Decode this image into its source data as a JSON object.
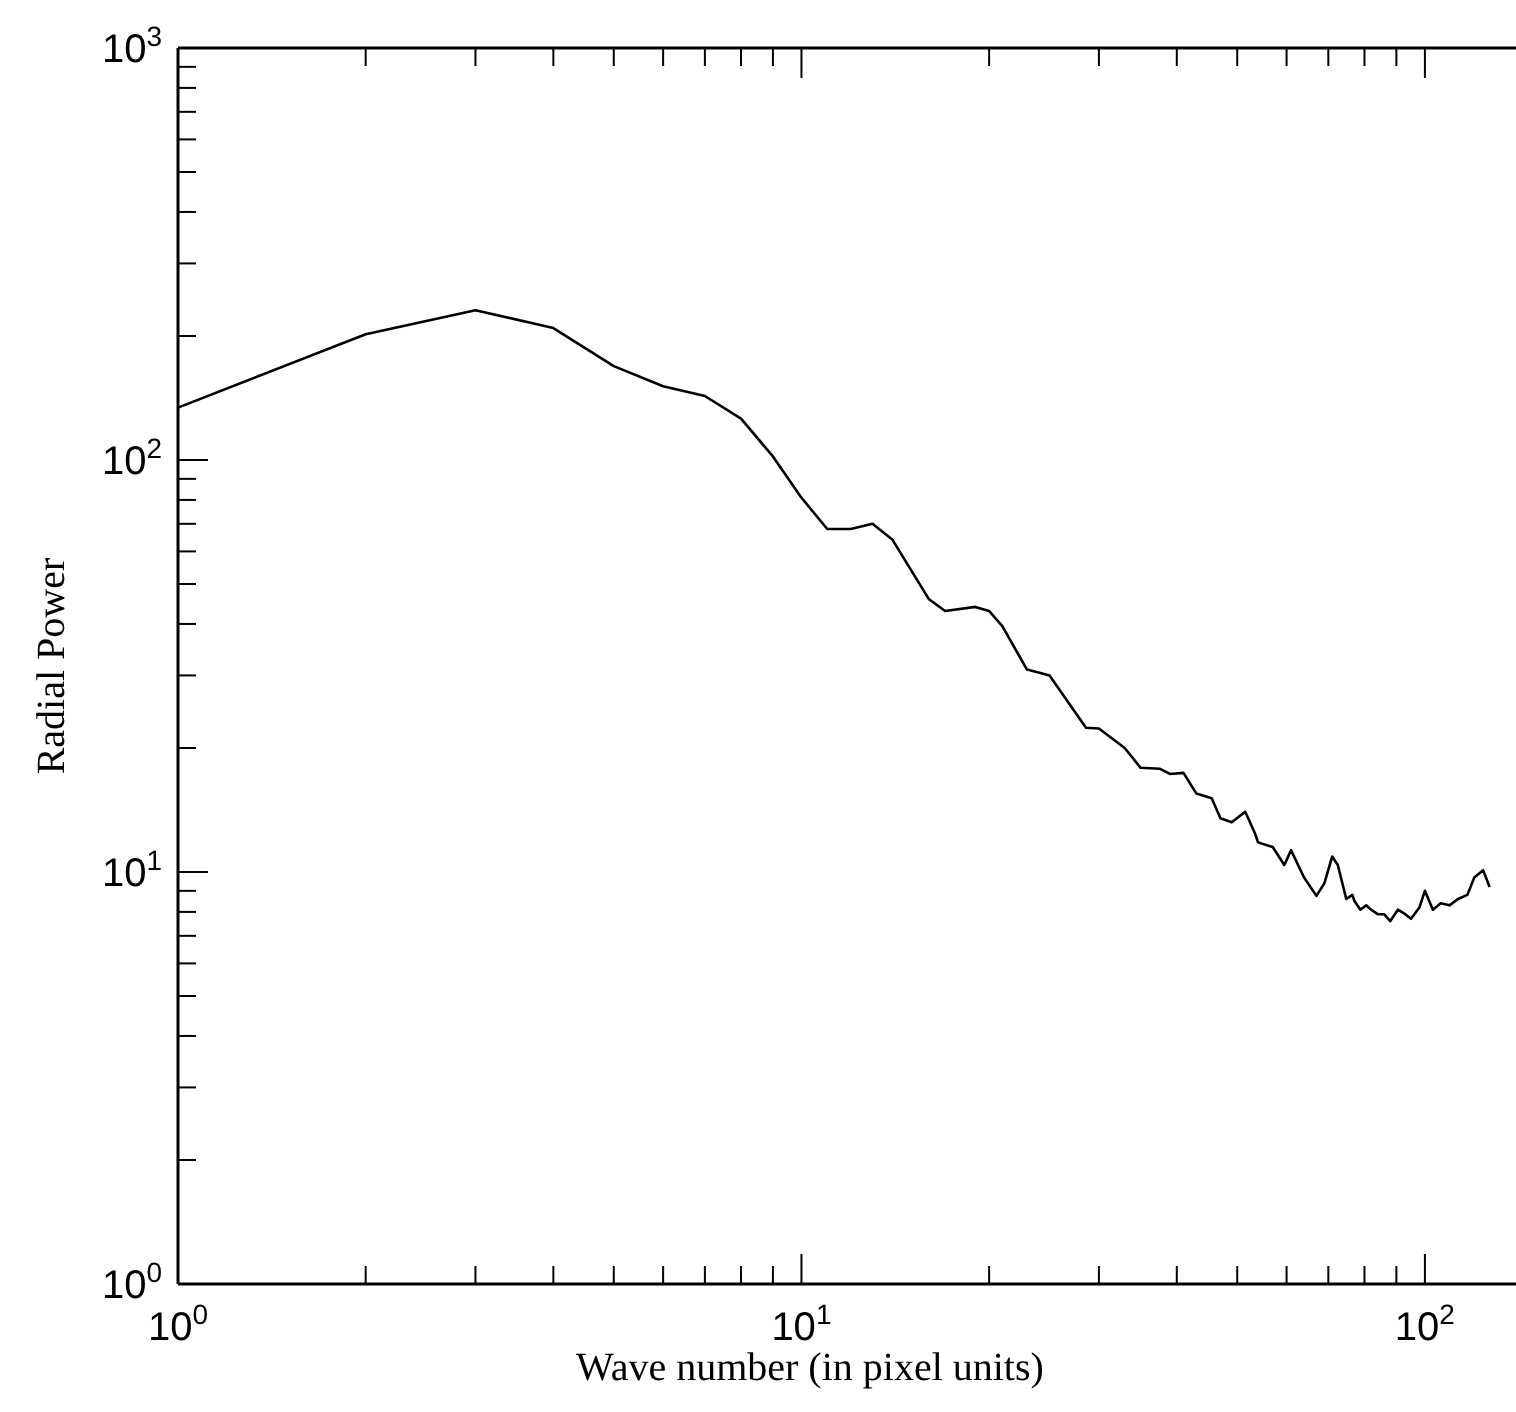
{
  "chart_data": {
    "type": "line",
    "xlabel": "Wave number (in pixel units)",
    "ylabel": "Radial Power",
    "log": "xy",
    "grid": false,
    "marker": "none",
    "line_style": "solid",
    "xlim": [
      1,
      140
    ],
    "ylim": [
      1,
      1000
    ],
    "xticks": [
      {
        "value": 1,
        "label": "10$^{0}$"
      },
      {
        "value": 2,
        "label": null
      },
      {
        "value": 3,
        "label": null
      },
      {
        "value": 4,
        "label": null
      },
      {
        "value": 5,
        "label": null
      },
      {
        "value": 6,
        "label": null
      },
      {
        "value": 7,
        "label": null
      },
      {
        "value": 8,
        "label": null
      },
      {
        "value": 9,
        "label": null
      },
      {
        "value": 10,
        "label": "10$^{1}$"
      },
      {
        "value": 20,
        "label": null
      },
      {
        "value": 30,
        "label": null
      },
      {
        "value": 40,
        "label": null
      },
      {
        "value": 50,
        "label": null
      },
      {
        "value": 60,
        "label": null
      },
      {
        "value": 70,
        "label": null
      },
      {
        "value": 80,
        "label": null
      },
      {
        "value": 90,
        "label": null
      },
      {
        "value": 100,
        "label": "10$^{2}$"
      }
    ],
    "yticks": [
      {
        "value": 1,
        "label": "10$^{0}$"
      },
      {
        "value": 2,
        "label": null
      },
      {
        "value": 3,
        "label": null
      },
      {
        "value": 4,
        "label": null
      },
      {
        "value": 5,
        "label": null
      },
      {
        "value": 6,
        "label": null
      },
      {
        "value": 7,
        "label": null
      },
      {
        "value": 8,
        "label": null
      },
      {
        "value": 9,
        "label": null
      },
      {
        "value": 10,
        "label": "10$^{1}$"
      },
      {
        "value": 20,
        "label": null
      },
      {
        "value": 30,
        "label": null
      },
      {
        "value": 40,
        "label": null
      },
      {
        "value": 50,
        "label": null
      },
      {
        "value": 60,
        "label": null
      },
      {
        "value": 70,
        "label": null
      },
      {
        "value": 80,
        "label": null
      },
      {
        "value": 90,
        "label": null
      },
      {
        "value": 100,
        "label": "10$^{2}$"
      },
      {
        "value": 200,
        "label": null
      },
      {
        "value": 300,
        "label": null
      },
      {
        "value": 400,
        "label": null
      },
      {
        "value": 500,
        "label": null
      },
      {
        "value": 600,
        "label": null
      },
      {
        "value": 700,
        "label": null
      },
      {
        "value": 800,
        "label": null
      },
      {
        "value": 900,
        "label": null
      },
      {
        "value": 1000,
        "label": "10$^{3}$"
      }
    ],
    "x": [
      1,
      2,
      3,
      4,
      5,
      6,
      7,
      8,
      9,
      10,
      11,
      12,
      13,
      14,
      16,
      17,
      19,
      20,
      21,
      23,
      24,
      25,
      28.6,
      30,
      33,
      35,
      37.6,
      39,
      41,
      43,
      45.5,
      47,
      49,
      51.5,
      53.4,
      54,
      57,
      59.5,
      61,
      62.6,
      64,
      67,
      69,
      71,
      72.5,
      74.8,
      76.5,
      77.1,
      78.8,
      80.5,
      82,
      84,
      86,
      88,
      90.5,
      93,
      95,
      98,
      100,
      103,
      106,
      109.5,
      113,
      117,
      120,
      124,
      127
    ],
    "series": [
      {
        "color": "#000000",
        "values": [
          134,
          202,
          231,
          209,
          169,
          151,
          143,
          126,
          102,
          81,
          68,
          68,
          70,
          64,
          46,
          43,
          44,
          43,
          39.5,
          31,
          30.5,
          30,
          22.4,
          22.3,
          20,
          17.9,
          17.8,
          17.3,
          17.4,
          15.5,
          15.1,
          13.5,
          13.2,
          14,
          12.4,
          11.8,
          11.5,
          10.4,
          11.3,
          10.4,
          9.7,
          8.75,
          9.4,
          10.9,
          10.4,
          8.6,
          8.8,
          8.5,
          8.1,
          8.3,
          8.1,
          7.9,
          7.9,
          7.6,
          8.1,
          7.9,
          7.7,
          8.2,
          9,
          8.1,
          8.4,
          8.3,
          8.6,
          8.8,
          9.7,
          10.1,
          9.2
        ]
      }
    ]
  }
}
